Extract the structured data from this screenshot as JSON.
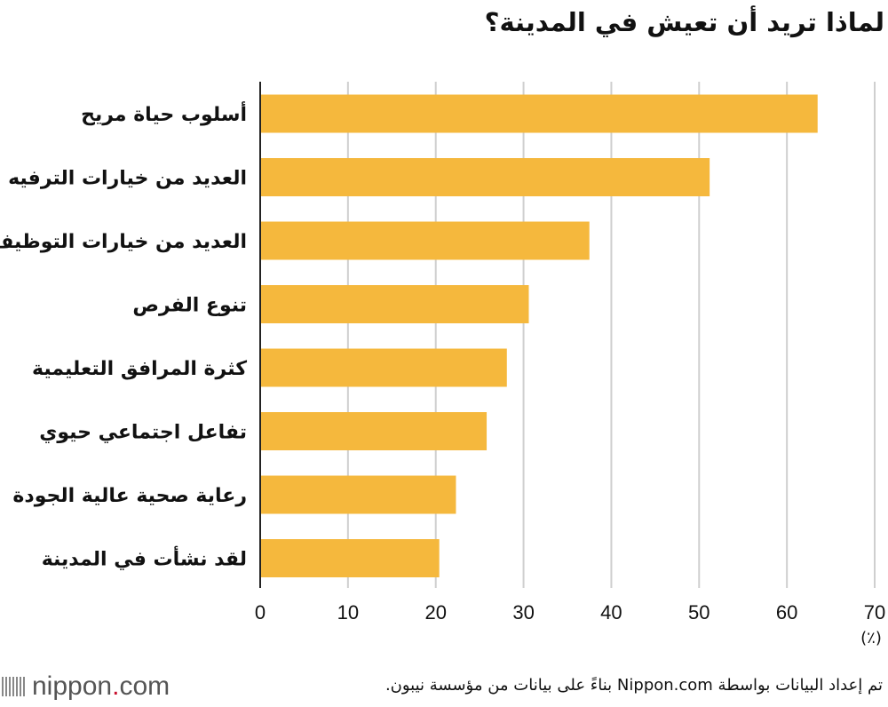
{
  "title": "لماذا تريد أن تعيش في المدينة؟",
  "chart_data": {
    "type": "bar",
    "orientation": "horizontal",
    "categories": [
      "أسلوب حياة مريح",
      "العديد من خيارات الترفيه",
      "العديد من خيارات التوظيف",
      "تنوع الفرص",
      "كثرة المرافق التعليمية",
      "تفاعل اجتماعي حيوي",
      "رعاية صحية عالية الجودة",
      "لقد نشأت في المدينة"
    ],
    "values": [
      63.5,
      51.2,
      37.5,
      30.6,
      28.1,
      25.8,
      22.3,
      20.4
    ],
    "x_ticks": [
      0,
      10,
      20,
      30,
      40,
      50,
      60,
      70
    ],
    "xlim": [
      0,
      70
    ],
    "unit_label": "(٪)",
    "bar_color": "#f5b83d",
    "grid": true
  },
  "footer": {
    "logo_text": "nippon",
    "logo_dot": ".",
    "logo_suffix": "com",
    "source": "تم إعداد البيانات بواسطة Nippon.com بناءً على بيانات من مؤسسة نيبون."
  }
}
